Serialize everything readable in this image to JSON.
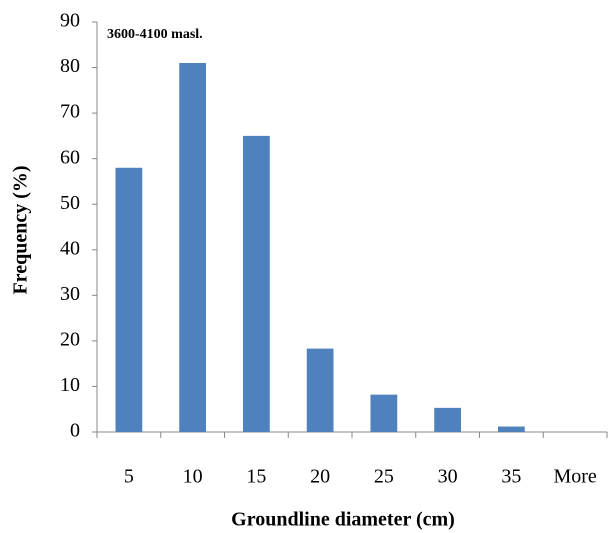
{
  "chart_data": {
    "type": "bar",
    "annotation": "3600-4100 masl.",
    "x_label": "Groundline diameter (cm)",
    "y_label": "Frequency (%)",
    "categories": [
      "5",
      "10",
      "15",
      "20",
      "25",
      "30",
      "35",
      "More"
    ],
    "values": [
      58,
      81,
      65,
      18.3,
      8.2,
      5.3,
      1.2,
      0
    ],
    "color": "#4f81bd",
    "ylim": [
      0,
      90
    ],
    "yticks": [
      0,
      10,
      20,
      30,
      40,
      50,
      60,
      70,
      80,
      90
    ],
    "grid": false
  }
}
